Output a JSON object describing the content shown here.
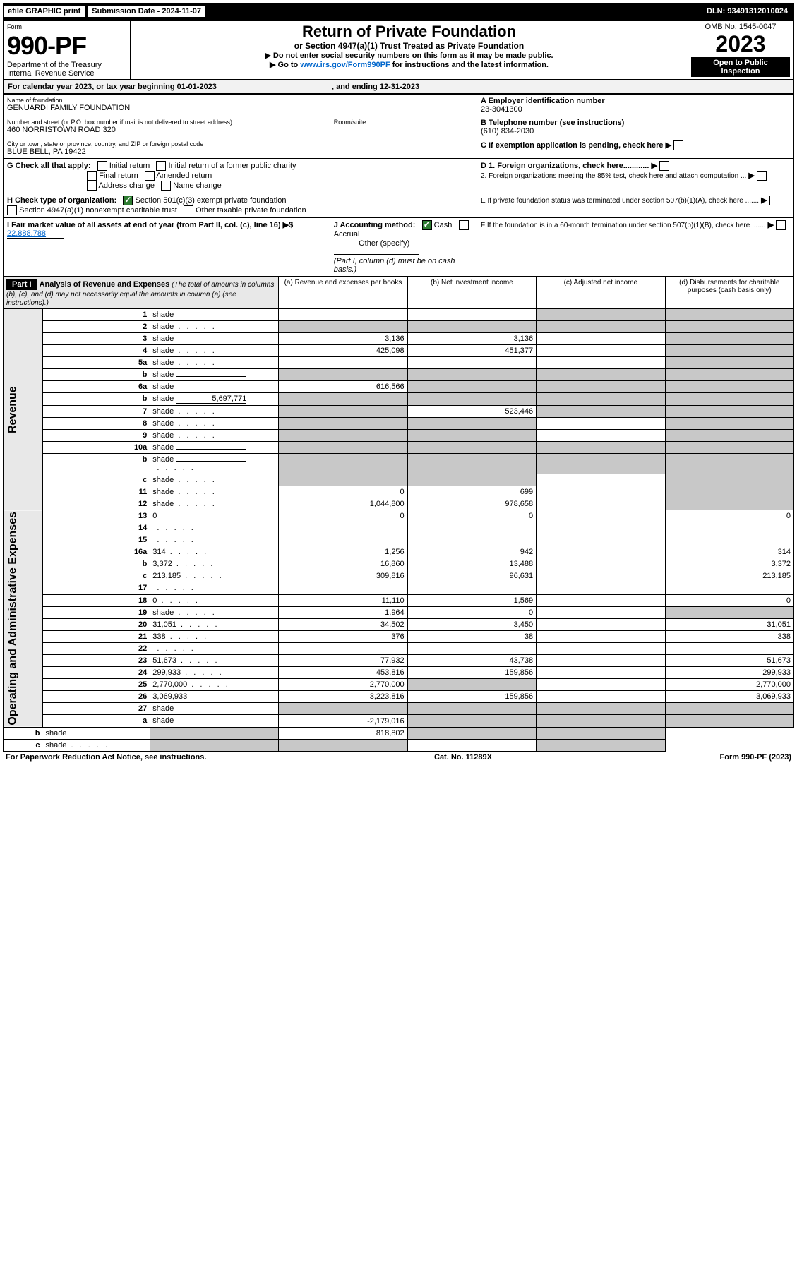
{
  "topbar": {
    "efile": "efile GRAPHIC print",
    "submission_label": "Submission Date - 2024-11-07",
    "dln": "DLN: 93491312010024"
  },
  "header": {
    "form_label": "Form",
    "form_number": "990-PF",
    "dept1": "Department of the Treasury",
    "dept2": "Internal Revenue Service",
    "title": "Return of Private Foundation",
    "subtitle": "or Section 4947(a)(1) Trust Treated as Private Foundation",
    "instr1": "▶ Do not enter social security numbers on this form as it may be made public.",
    "instr2_pre": "▶ Go to ",
    "instr2_link": "www.irs.gov/Form990PF",
    "instr2_post": " for instructions and the latest information.",
    "omb": "OMB No. 1545-0047",
    "year": "2023",
    "inspect1": "Open to Public",
    "inspect2": "Inspection"
  },
  "calendar": {
    "text_a": "For calendar year 2023, or tax year beginning 01-01-2023",
    "text_b": ", and ending 12-31-2023"
  },
  "entity": {
    "name_label": "Name of foundation",
    "name": "GENUARDI FAMILY FOUNDATION",
    "addr_label": "Number and street (or P.O. box number if mail is not delivered to street address)",
    "addr": "460 NORRISTOWN ROAD 320",
    "room_label": "Room/suite",
    "city_label": "City or town, state or province, country, and ZIP or foreign postal code",
    "city": "BLUE BELL, PA  19422",
    "A_label": "A Employer identification number",
    "A_val": "23-3041300",
    "B_label": "B Telephone number (see instructions)",
    "B_val": "(610) 834-2030",
    "C_label": "C If exemption application is pending, check here",
    "D1": "D 1. Foreign organizations, check here............",
    "D2": "2. Foreign organizations meeting the 85% test, check here and attach computation ...",
    "E": "E  If private foundation status was terminated under section 507(b)(1)(A), check here .......",
    "F": "F  If the foundation is in a 60-month termination under section 507(b)(1)(B), check here .......",
    "G_label": "G Check all that apply:",
    "G_opts": [
      "Initial return",
      "Initial return of a former public charity",
      "Final return",
      "Amended return",
      "Address change",
      "Name change"
    ],
    "H_label": "H Check type of organization:",
    "H1": "Section 501(c)(3) exempt private foundation",
    "H2": "Section 4947(a)(1) nonexempt charitable trust",
    "H3": "Other taxable private foundation",
    "I_label": "I Fair market value of all assets at end of year (from Part II, col. (c), line 16)",
    "I_val": "22,888,788",
    "J_label": "J Accounting method:",
    "J_cash": "Cash",
    "J_accrual": "Accrual",
    "J_other": "Other (specify)",
    "J_note": "(Part I, column (d) must be on cash basis.)"
  },
  "part1": {
    "label": "Part I",
    "title": "Analysis of Revenue and Expenses",
    "title_sub": "(The total of amounts in columns (b), (c), and (d) may not necessarily equal the amounts in column (a) (see instructions).)",
    "col_a": "(a)   Revenue and expenses per books",
    "col_b": "(b)   Net investment income",
    "col_c": "(c)   Adjusted net income",
    "col_d": "(d)   Disbursements for charitable purposes (cash basis only)",
    "side_rev": "Revenue",
    "side_exp": "Operating and Administrative Expenses"
  },
  "rows": [
    {
      "n": "1",
      "d": "shade",
      "a": "",
      "b": "",
      "c": "shade"
    },
    {
      "n": "2",
      "d": "shade",
      "a": "shade",
      "b": "shade",
      "c": "shade",
      "dots": true
    },
    {
      "n": "3",
      "d": "shade",
      "a": "3,136",
      "b": "3,136",
      "c": ""
    },
    {
      "n": "4",
      "d": "shade",
      "a": "425,098",
      "b": "451,377",
      "c": "",
      "dots": true
    },
    {
      "n": "5a",
      "d": "shade",
      "a": "",
      "b": "",
      "c": "",
      "dots": true
    },
    {
      "n": "b",
      "d": "shade",
      "a": "shade",
      "b": "shade",
      "c": "shade",
      "inline": true
    },
    {
      "n": "6a",
      "d": "shade",
      "a": "616,566",
      "b": "shade",
      "c": "shade"
    },
    {
      "n": "b",
      "d": "shade",
      "a": "shade",
      "b": "shade",
      "c": "shade",
      "inline": true,
      "inline_val": "5,697,771"
    },
    {
      "n": "7",
      "d": "shade",
      "a": "shade",
      "b": "523,446",
      "c": "shade",
      "dots": true
    },
    {
      "n": "8",
      "d": "shade",
      "a": "shade",
      "b": "shade",
      "c": "",
      "dots": true
    },
    {
      "n": "9",
      "d": "shade",
      "a": "shade",
      "b": "shade",
      "c": "",
      "dots": true
    },
    {
      "n": "10a",
      "d": "shade",
      "a": "shade",
      "b": "shade",
      "c": "shade",
      "inline": true
    },
    {
      "n": "b",
      "d": "shade",
      "a": "shade",
      "b": "shade",
      "c": "shade",
      "inline": true,
      "dots": true
    },
    {
      "n": "c",
      "d": "shade",
      "a": "shade",
      "b": "shade",
      "c": "",
      "dots": true
    },
    {
      "n": "11",
      "d": "shade",
      "a": "0",
      "b": "699",
      "c": "",
      "dots": true
    },
    {
      "n": "12",
      "d": "shade",
      "a": "1,044,800",
      "b": "978,658",
      "c": "",
      "dots": true
    },
    {
      "n": "13",
      "d": "0",
      "a": "0",
      "b": "0",
      "c": ""
    },
    {
      "n": "14",
      "d": "",
      "a": "",
      "b": "",
      "c": "",
      "dots": true
    },
    {
      "n": "15",
      "d": "",
      "a": "",
      "b": "",
      "c": "",
      "dots": true
    },
    {
      "n": "16a",
      "d": "314",
      "a": "1,256",
      "b": "942",
      "c": "",
      "dots": true
    },
    {
      "n": "b",
      "d": "3,372",
      "a": "16,860",
      "b": "13,488",
      "c": "",
      "dots": true
    },
    {
      "n": "c",
      "d": "213,185",
      "a": "309,816",
      "b": "96,631",
      "c": "",
      "dots": true
    },
    {
      "n": "17",
      "d": "",
      "a": "",
      "b": "",
      "c": "",
      "dots": true
    },
    {
      "n": "18",
      "d": "0",
      "a": "11,110",
      "b": "1,569",
      "c": "",
      "dots": true
    },
    {
      "n": "19",
      "d": "shade",
      "a": "1,964",
      "b": "0",
      "c": "",
      "dots": true
    },
    {
      "n": "20",
      "d": "31,051",
      "a": "34,502",
      "b": "3,450",
      "c": "",
      "dots": true
    },
    {
      "n": "21",
      "d": "338",
      "a": "376",
      "b": "38",
      "c": "",
      "dots": true
    },
    {
      "n": "22",
      "d": "",
      "a": "",
      "b": "",
      "c": "",
      "dots": true
    },
    {
      "n": "23",
      "d": "51,673",
      "a": "77,932",
      "b": "43,738",
      "c": "",
      "dots": true
    },
    {
      "n": "24",
      "d": "299,933",
      "a": "453,816",
      "b": "159,856",
      "c": "",
      "dots": true
    },
    {
      "n": "25",
      "d": "2,770,000",
      "a": "2,770,000",
      "b": "shade",
      "c": "",
      "dots": true
    },
    {
      "n": "26",
      "d": "3,069,933",
      "a": "3,223,816",
      "b": "159,856",
      "c": ""
    },
    {
      "n": "27",
      "d": "shade",
      "a": "shade",
      "b": "shade",
      "c": "shade"
    },
    {
      "n": "a",
      "d": "shade",
      "a": "-2,179,016",
      "b": "shade",
      "c": "shade"
    },
    {
      "n": "b",
      "d": "shade",
      "a": "shade",
      "b": "818,802",
      "c": "shade"
    },
    {
      "n": "c",
      "d": "shade",
      "a": "shade",
      "b": "shade",
      "c": "",
      "dots": true
    }
  ],
  "footer": {
    "left": "For Paperwork Reduction Act Notice, see instructions.",
    "mid": "Cat. No. 11289X",
    "right": "Form 990-PF (2023)"
  }
}
